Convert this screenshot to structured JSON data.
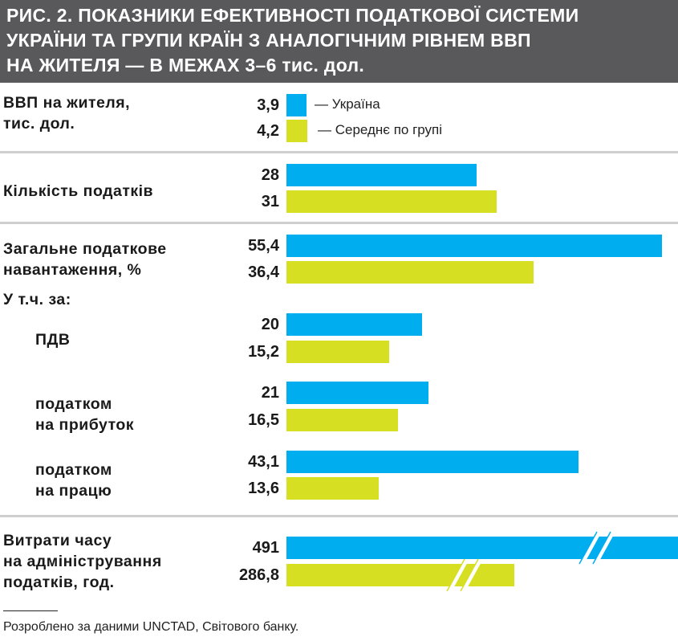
{
  "title_lines": [
    "РИС. 2. ПОКАЗНИКИ ЕФЕКТИВНОСТІ ПОДАТКОВОЇ СИСТЕМИ",
    "УКРАЇНИ ТА ГРУПИ КРАЇН З АНАЛОГІЧНИМ РІВНЕМ ВВП",
    "НА ЖИТЕЛЯ — В МЕЖАХ 3–6 тис. дол."
  ],
  "colors": {
    "ukraine": "#00adef",
    "group": "#d7df23",
    "header": "#59595b"
  },
  "chart_data": {
    "type": "bar",
    "orientation": "horizontal",
    "legend": [
      "— Україна",
      "— Середнє по групі"
    ],
    "categories": [
      {
        "label": "ВВП на жителя,\nтис. дол.",
        "values": [
          "3,9",
          "4,2"
        ],
        "num": [
          3.9,
          4.2
        ]
      },
      {
        "label": "Кількість податків",
        "values": [
          "28",
          "31"
        ],
        "num": [
          28,
          31
        ]
      },
      {
        "label": "Загальне податкове\nнавантаження, %",
        "values": [
          "55,4",
          "36,4"
        ],
        "num": [
          55.4,
          36.4
        ]
      },
      {
        "label": "ПДВ",
        "values": [
          "20",
          "15,2"
        ],
        "num": [
          20,
          15.2
        ]
      },
      {
        "label": "податком\nна прибуток",
        "values": [
          "21",
          "16,5"
        ],
        "num": [
          21,
          16.5
        ]
      },
      {
        "label": "податком\nна працю",
        "values": [
          "43,1",
          "13,6"
        ],
        "num": [
          43.1,
          13.6
        ]
      },
      {
        "label": "Витрати часу\nна адміністрування\nподатків, год.",
        "values": [
          "491",
          "286,8"
        ],
        "num": [
          491,
          286.8
        ],
        "broken_axis": true
      }
    ],
    "subheading": "У т.ч. за:"
  },
  "source": "Розроблено за даними UNCTAD, Світового банку."
}
